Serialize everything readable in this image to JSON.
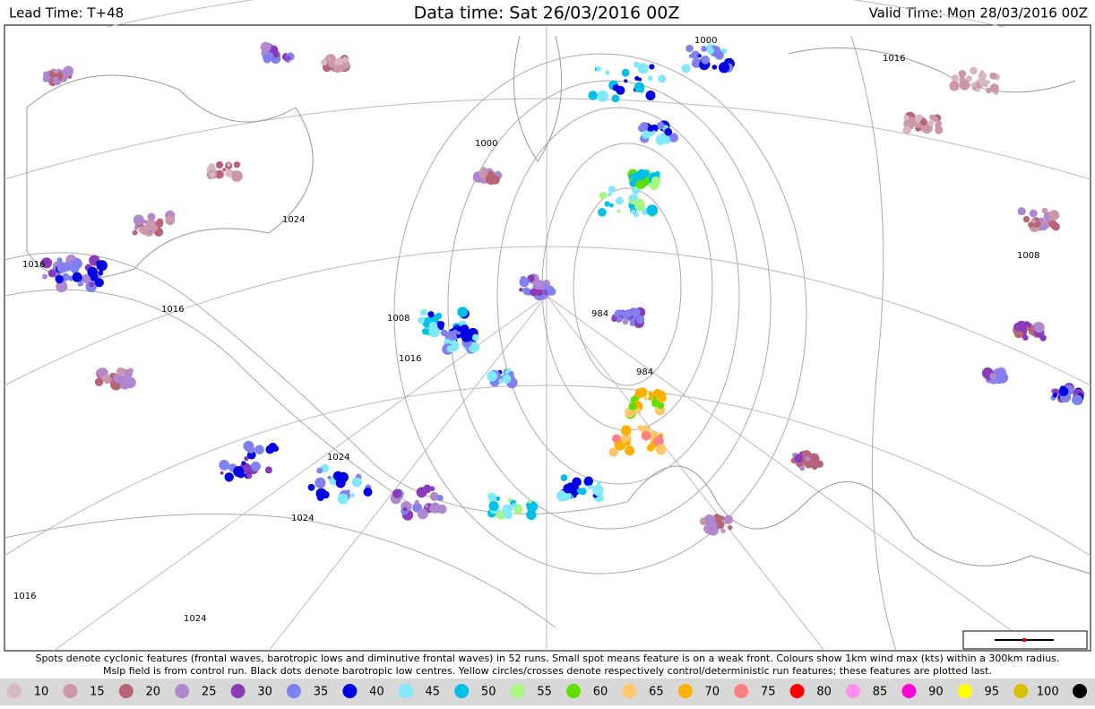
{
  "header": {
    "lead_time": "Lead Time: T+48",
    "data_time": "Data time:  Sat 26/03/2016 00Z",
    "valid_time": "Valid Time: Mon 28/03/2016 00Z"
  },
  "map": {
    "isobar_labels": [
      "1016",
      "1016",
      "1024",
      "1000",
      "1008",
      "1016",
      "984",
      "984",
      "1000",
      "1024",
      "1024",
      "1016",
      "1024",
      "1008",
      "1016"
    ]
  },
  "footer": {
    "line1": "Spots denote cyclonic features (frontal waves, barotropic lows and diminutive frontal waves) in 52 runs. Small spot means feature is on a weak front. Colours show 1km wind max (kts) within a 300km radius.",
    "line2": "Mslp field is from control run. Black dots denote barotropic low centres. Yellow circles/crosses denote respectively control/deterministic run features; these features are plotted last."
  },
  "legend": {
    "items": [
      {
        "label": "10",
        "color": "#d8b8c0"
      },
      {
        "label": "15",
        "color": "#cc98a8"
      },
      {
        "label": "20",
        "color": "#b86478"
      },
      {
        "label": "25",
        "color": "#b088d0"
      },
      {
        "label": "30",
        "color": "#8a3cb8"
      },
      {
        "label": "35",
        "color": "#8080f0"
      },
      {
        "label": "40",
        "color": "#0000e0"
      },
      {
        "label": "45",
        "color": "#80e8ff"
      },
      {
        "label": "50",
        "color": "#00c0e8"
      },
      {
        "label": "55",
        "color": "#a8f880"
      },
      {
        "label": "60",
        "color": "#60e000"
      },
      {
        "label": "65",
        "color": "#ffc868"
      },
      {
        "label": "70",
        "color": "#ffb000"
      },
      {
        "label": "75",
        "color": "#ff8080"
      },
      {
        "label": "80",
        "color": "#ff0000"
      },
      {
        "label": "85",
        "color": "#ff90f0"
      },
      {
        "label": "90",
        "color": "#ff00d8"
      },
      {
        "label": "95",
        "color": "#ffff00"
      },
      {
        "label": "100",
        "color": "#d8c000"
      }
    ]
  }
}
